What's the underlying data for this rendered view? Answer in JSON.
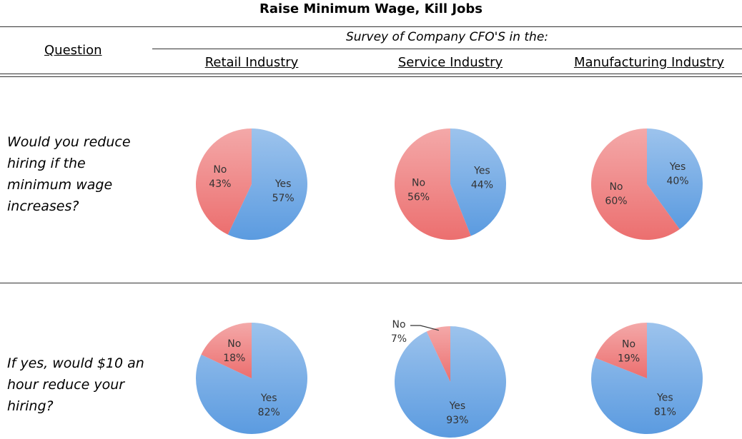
{
  "title": "Raise Minimum Wage, Kill Jobs",
  "question_header": "Question",
  "survey_header": "Survey of Company CFO'S in the:",
  "columns": [
    "Retail Industry",
    "Service Industry",
    "Manufacturing Industry"
  ],
  "questions": [
    "Would you reduce hiring if the minimum wage increases?",
    "If yes, would $10 an hour reduce your hiring?"
  ],
  "chart_data": [
    {
      "type": "pie",
      "categories": [
        "Yes",
        "No"
      ],
      "values": [
        57,
        43
      ],
      "value_labels": [
        "57%",
        "43%"
      ],
      "colors": [
        "#5b9be0",
        "#ec6f6f"
      ]
    },
    {
      "type": "pie",
      "categories": [
        "Yes",
        "No"
      ],
      "values": [
        44,
        56
      ],
      "value_labels": [
        "44%",
        "56%"
      ],
      "colors": [
        "#5b9be0",
        "#ec6f6f"
      ]
    },
    {
      "type": "pie",
      "categories": [
        "Yes",
        "No"
      ],
      "values": [
        40,
        60
      ],
      "value_labels": [
        "40%",
        "60%"
      ],
      "colors": [
        "#5b9be0",
        "#ec6f6f"
      ]
    },
    {
      "type": "pie",
      "categories": [
        "Yes",
        "No"
      ],
      "values": [
        82,
        18
      ],
      "value_labels": [
        "82%",
        "18%"
      ],
      "colors": [
        "#5b9be0",
        "#ec6f6f"
      ]
    },
    {
      "type": "pie",
      "categories": [
        "Yes",
        "No"
      ],
      "values": [
        93,
        7
      ],
      "value_labels": [
        "93%",
        "7%"
      ],
      "colors": [
        "#5b9be0",
        "#ec6f6f"
      ]
    },
    {
      "type": "pie",
      "categories": [
        "Yes",
        "No"
      ],
      "values": [
        81,
        19
      ],
      "value_labels": [
        "81%",
        "19%"
      ],
      "colors": [
        "#5b9be0",
        "#ec6f6f"
      ]
    }
  ]
}
